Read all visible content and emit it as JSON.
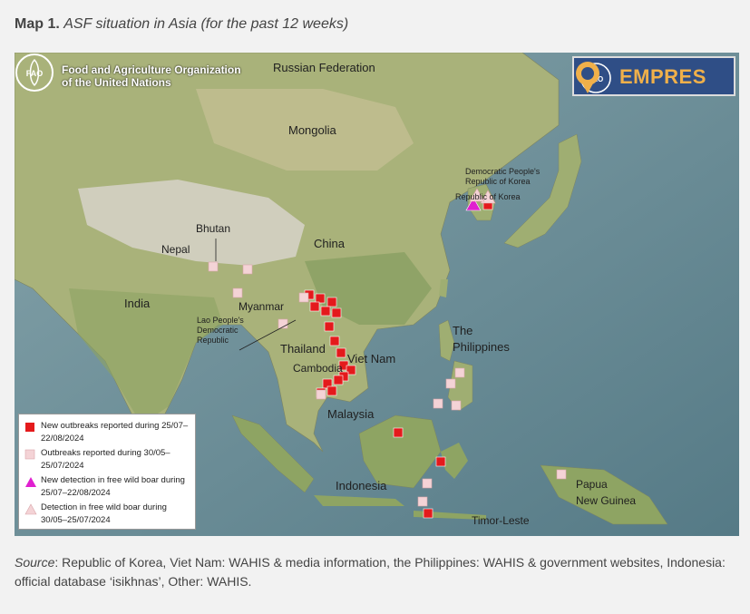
{
  "caption": {
    "prefix": "Map 1.",
    "title": "ASF situation in Asia (for the past 12 weeks)"
  },
  "logos": {
    "fao_line1": "Food and Agriculture Organization",
    "fao_line2": "of the United Nations",
    "empres": "EMPRES"
  },
  "labels": {
    "russia": "Russian Federation",
    "mongolia": "Mongolia",
    "dprk1": "Democratic People's",
    "dprk2": "Republic of Korea",
    "rok": "Republic of Korea",
    "bhutan": "Bhutan",
    "nepal": "Nepal",
    "china": "China",
    "india": "India",
    "myanmar": "Myanmar",
    "lao": "Lao People's Democratic Republic",
    "thailand": "Thailand",
    "vietnam": "Viet Nam",
    "cambodia": "Cambodia",
    "philippines1": "The",
    "philippines2": "Philippines",
    "malaysia": "Malaysia",
    "indonesia": "Indonesia",
    "png1": "Papua",
    "png2": "New Guinea",
    "timor": "Timor-Leste"
  },
  "legend": {
    "items": [
      {
        "label": "New outbreaks reported during 25/07–22/08/2024",
        "symbol": "square",
        "color": "#e41a1c"
      },
      {
        "label": "Outbreaks reported during 30/05–25/07/2024",
        "symbol": "square",
        "color": "#f4d3d6"
      },
      {
        "label": "New detection in free wild boar during 25/07–22/08/2024",
        "symbol": "triangle",
        "color": "#e020d0"
      },
      {
        "label": "Detection in free wild boar during 30/05–25/07/2024",
        "symbol": "triangle",
        "color": "#f4d3d6"
      }
    ]
  },
  "source": {
    "label": "Source",
    "text": ": Republic of Korea, Viet Nam: WAHIS & media information, the Philippines: WAHIS & government websites, Indonesia: official database ‘isikhnas’, Other: WAHIS."
  },
  "colors": {
    "new_outbreak": "#e41a1c",
    "old_outbreak": "#f4d3d6",
    "new_wildboar": "#e020d0",
    "sea": "#6b8a93",
    "land": "#a7b27a"
  }
}
